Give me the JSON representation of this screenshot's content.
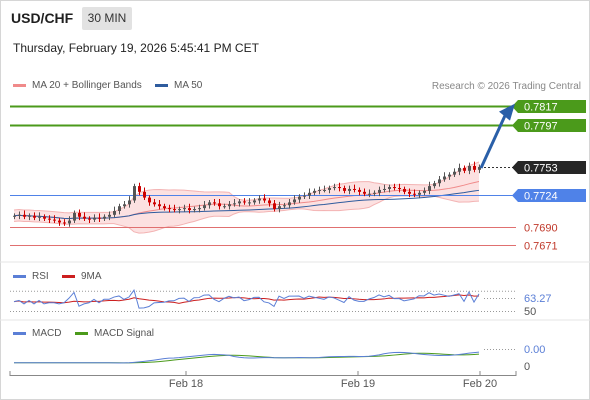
{
  "header": {
    "symbol": "USD/CHF",
    "timeframe": "30 MIN",
    "timestamp": "Thursday, February 19, 2026 5:45:41 PM CET"
  },
  "legend": {
    "ma20_label": "MA 20 + Bollinger Bands",
    "ma50_label": "MA 50",
    "copyright": "Research © 2026 Trading Central",
    "rsi_label": "RSI",
    "rsi_ma_label": "9MA",
    "macd_label": "MACD",
    "macd_signal_label": "MACD Signal"
  },
  "colors": {
    "resistance": "#4b9a1b",
    "support_line": "#4f82e8",
    "target_line": "#e07070",
    "target_text": "#c0392b",
    "arrow": "#2a5fa8",
    "ma20": "#f08a8a",
    "ma50": "#2f5c9e",
    "band_fill": "#fbdcdc",
    "candle_up": "#555555",
    "candle_down": "#cc0000",
    "rsi": "#5b7fd6",
    "rsi_ma": "#cc1f1f",
    "macd": "#5b7fd6",
    "macd_signal": "#4b9a1b"
  },
  "chart_data": [
    {
      "type": "candlestick",
      "panel": "price",
      "y_range": [
        0.766,
        0.7825
      ],
      "levels": [
        {
          "value": 0.7817,
          "label": "0.7817",
          "kind": "resistance"
        },
        {
          "value": 0.7797,
          "label": "0.7797",
          "kind": "resistance"
        },
        {
          "value": 0.7753,
          "label": "0.7753",
          "kind": "last"
        },
        {
          "value": 0.7724,
          "label": "0.7724",
          "kind": "pivot"
        },
        {
          "value": 0.769,
          "label": "0.7690",
          "kind": "support"
        },
        {
          "value": 0.7671,
          "label": "0.7671",
          "kind": "support"
        }
      ],
      "x_ticks": [
        "Feb 18",
        "Feb 19",
        "Feb 20"
      ],
      "close": [
        0.7702,
        0.7703,
        0.7701,
        0.7702,
        0.77,
        0.7701,
        0.7699,
        0.7698,
        0.7697,
        0.7695,
        0.7694,
        0.7697,
        0.7705,
        0.7701,
        0.7699,
        0.7698,
        0.77,
        0.7699,
        0.7701,
        0.7703,
        0.7707,
        0.7712,
        0.7714,
        0.7718,
        0.7733,
        0.7727,
        0.7721,
        0.7716,
        0.7714,
        0.7712,
        0.771,
        0.7709,
        0.7708,
        0.7709,
        0.771,
        0.7708,
        0.7709,
        0.771,
        0.7713,
        0.7716,
        0.7715,
        0.7712,
        0.7712,
        0.7714,
        0.7715,
        0.7717,
        0.7716,
        0.7716,
        0.7718,
        0.772,
        0.7718,
        0.7715,
        0.7709,
        0.7712,
        0.7713,
        0.7716,
        0.7719,
        0.7722,
        0.7723,
        0.7726,
        0.7728,
        0.7729,
        0.7729,
        0.7731,
        0.7732,
        0.7731,
        0.7728,
        0.773,
        0.7729,
        0.7727,
        0.7725,
        0.7725,
        0.7726,
        0.7729,
        0.773,
        0.7732,
        0.7731,
        0.773,
        0.7727,
        0.7725,
        0.7724,
        0.7726,
        0.7728,
        0.7733,
        0.7736,
        0.774,
        0.7743,
        0.7745,
        0.7748,
        0.7752,
        0.7749,
        0.7754,
        0.775,
        0.7753
      ],
      "projection": {
        "from": 0.7753,
        "to": 0.7817
      }
    },
    {
      "type": "line",
      "panel": "rsi",
      "series": [
        {
          "name": "RSI"
        },
        {
          "name": "9MA"
        }
      ],
      "y_range": [
        30,
        80
      ],
      "value_labels": [
        "63.27",
        "50"
      ]
    },
    {
      "type": "line",
      "panel": "macd",
      "series": [
        {
          "name": "MACD"
        },
        {
          "name": "MACD Signal"
        }
      ],
      "y_range": [
        -0.0008,
        0.0018
      ],
      "value_labels": [
        "0.00",
        "0"
      ]
    }
  ]
}
